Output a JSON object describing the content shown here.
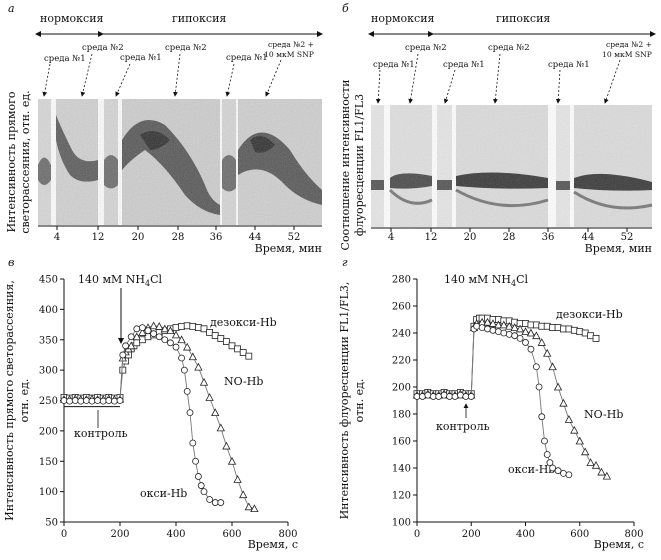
{
  "panels": {
    "a": {
      "letter": "а",
      "phase_normoxia": "нормоксия",
      "phase_hypoxia": "гипоксия",
      "media": [
        "среда №1",
        "среда №2",
        "среда №1",
        "среда №2",
        "среда №1"
      ],
      "media_last": [
        "среда №2 +",
        "10 мкМ SNP"
      ],
      "ylabel_lines": [
        "Интенсивность прямого",
        "светорассеяния, отн. ед."
      ],
      "xlabel": "Время, мин",
      "xticks": [
        "4",
        "12",
        "20",
        "28",
        "36",
        "44",
        "52"
      ]
    },
    "b": {
      "letter": "б",
      "phase_normoxia": "нормоксия",
      "phase_hypoxia": "гипоксия",
      "media": [
        "среда №1",
        "среда №2",
        "среда №1",
        "среда №2",
        "среда №1"
      ],
      "media_last": [
        "среда №2 +",
        "10 мкМ SNP"
      ],
      "ylabel_lines": [
        "Соотношение интенсивности",
        "флуоресценции FL1/FL3"
      ],
      "xlabel": "Время, мин",
      "xticks": [
        "4",
        "12",
        "20",
        "28",
        "36",
        "44",
        "52"
      ]
    },
    "c": {
      "letter": "в",
      "stimulus_main": "140 мМ NH",
      "stimulus_sub": "4",
      "stimulus_tail": "Cl",
      "label_deoxy": "дезокси-Hb",
      "label_no": "NO-Hb",
      "label_oxy": "окси-Hb",
      "label_control": "контроль"
    },
    "d": {
      "letter": "г",
      "stimulus_main": "140 мМ NH",
      "stimulus_sub": "4",
      "stimulus_tail": "Cl",
      "label_deoxy": "дезокси-Hb",
      "label_no": "NO-Hb",
      "label_oxy": "окси-Hb",
      "label_control": "контроль"
    }
  },
  "chart_data": [
    {
      "type": "scatter",
      "id": "c",
      "title": "",
      "xlabel": "Время, с",
      "ylabel": "Интенсивность прямого светорассеяния, отн. ед.",
      "xlim": [
        0,
        800
      ],
      "ylim": [
        50,
        450
      ],
      "xticks": [
        0,
        200,
        400,
        600,
        800
      ],
      "yticks": [
        50,
        100,
        150,
        200,
        250,
        300,
        350,
        400,
        450
      ],
      "control_level": 240,
      "series": [
        {
          "name": "дезокси-Hb",
          "marker": "square",
          "x": [
            0,
            20,
            40,
            60,
            80,
            100,
            120,
            140,
            160,
            180,
            200,
            210,
            220,
            230,
            240,
            250,
            260,
            280,
            300,
            320,
            340,
            360,
            380,
            400,
            420,
            440,
            460,
            480,
            500,
            520,
            540,
            560,
            580,
            600,
            620,
            640,
            660
          ],
          "y": [
            255,
            254,
            255,
            254,
            255,
            254,
            255,
            254,
            255,
            254,
            255,
            300,
            315,
            325,
            335,
            340,
            345,
            350,
            355,
            358,
            362,
            365,
            368,
            370,
            372,
            373,
            372,
            370,
            368,
            362,
            357,
            352,
            347,
            340,
            335,
            329,
            323
          ]
        },
        {
          "name": "NO-Hb",
          "marker": "triangle",
          "x": [
            0,
            20,
            40,
            60,
            80,
            100,
            120,
            140,
            160,
            180,
            200,
            210,
            220,
            230,
            240,
            260,
            280,
            300,
            320,
            340,
            360,
            380,
            400,
            420,
            440,
            460,
            480,
            500,
            520,
            540,
            560,
            580,
            600,
            620,
            640,
            660,
            680
          ],
          "y": [
            252,
            252,
            253,
            252,
            252,
            253,
            252,
            252,
            253,
            252,
            252,
            320,
            330,
            335,
            340,
            355,
            362,
            370,
            373,
            372,
            368,
            365,
            358,
            350,
            338,
            322,
            305,
            280,
            255,
            230,
            205,
            175,
            150,
            120,
            95,
            75,
            72
          ]
        },
        {
          "name": "окси-Hb",
          "marker": "circle",
          "x": [
            0,
            20,
            40,
            60,
            80,
            100,
            120,
            140,
            160,
            180,
            200,
            210,
            220,
            240,
            260,
            280,
            300,
            320,
            340,
            360,
            380,
            400,
            420,
            430,
            440,
            450,
            460,
            470,
            480,
            490,
            500,
            520,
            540,
            560
          ],
          "y": [
            250,
            249,
            250,
            249,
            250,
            249,
            250,
            249,
            250,
            249,
            250,
            325,
            340,
            355,
            368,
            370,
            365,
            360,
            355,
            350,
            345,
            338,
            320,
            300,
            265,
            230,
            180,
            150,
            125,
            110,
            100,
            87,
            82,
            82
          ]
        }
      ]
    },
    {
      "type": "scatter",
      "id": "d",
      "title": "",
      "xlabel": "Время, с",
      "ylabel": "Интенсивность флуоресценции FL1/FL3, отн. ед.",
      "xlim": [
        0,
        800
      ],
      "ylim": [
        100,
        280
      ],
      "xticks": [
        0,
        200,
        400,
        600,
        800
      ],
      "yticks": [
        100,
        120,
        140,
        160,
        180,
        200,
        220,
        240,
        260,
        280
      ],
      "series": [
        {
          "name": "дезокси-Hb",
          "marker": "square",
          "x": [
            0,
            20,
            40,
            60,
            80,
            100,
            120,
            140,
            160,
            180,
            200,
            210,
            220,
            230,
            240,
            260,
            280,
            300,
            320,
            340,
            360,
            380,
            400,
            420,
            440,
            460,
            480,
            500,
            520,
            540,
            560,
            580,
            600,
            620,
            640,
            660
          ],
          "y": [
            195,
            195,
            196,
            195,
            195,
            196,
            195,
            195,
            196,
            195,
            195,
            245,
            250,
            251,
            251,
            251,
            250,
            250,
            249,
            249,
            248,
            247,
            247,
            246,
            246,
            245,
            245,
            244,
            244,
            243,
            243,
            242,
            241,
            240,
            238,
            236
          ]
        },
        {
          "name": "NO-Hb",
          "marker": "triangle",
          "x": [
            0,
            20,
            40,
            60,
            80,
            100,
            120,
            140,
            160,
            180,
            200,
            210,
            220,
            240,
            260,
            280,
            300,
            320,
            340,
            360,
            380,
            400,
            420,
            440,
            460,
            480,
            500,
            520,
            540,
            560,
            580,
            600,
            620,
            640,
            660,
            680,
            700
          ],
          "y": [
            194,
            194,
            195,
            194,
            194,
            195,
            194,
            194,
            195,
            194,
            194,
            244,
            247,
            248,
            248,
            247,
            246,
            246,
            245,
            244,
            243,
            241,
            240,
            238,
            233,
            225,
            215,
            200,
            188,
            176,
            168,
            160,
            152,
            144,
            142,
            137,
            134
          ]
        },
        {
          "name": "окси-Hb",
          "marker": "circle",
          "x": [
            0,
            20,
            40,
            60,
            80,
            100,
            120,
            140,
            160,
            180,
            200,
            210,
            220,
            240,
            260,
            280,
            300,
            320,
            340,
            360,
            380,
            400,
            420,
            440,
            450,
            460,
            470,
            480,
            490,
            500,
            520,
            540,
            560
          ],
          "y": [
            193,
            193,
            194,
            193,
            193,
            194,
            193,
            193,
            194,
            193,
            193,
            243,
            245,
            244,
            243,
            242,
            241,
            240,
            239,
            238,
            236,
            233,
            228,
            215,
            200,
            178,
            160,
            150,
            144,
            140,
            138,
            136,
            135
          ]
        }
      ]
    }
  ]
}
